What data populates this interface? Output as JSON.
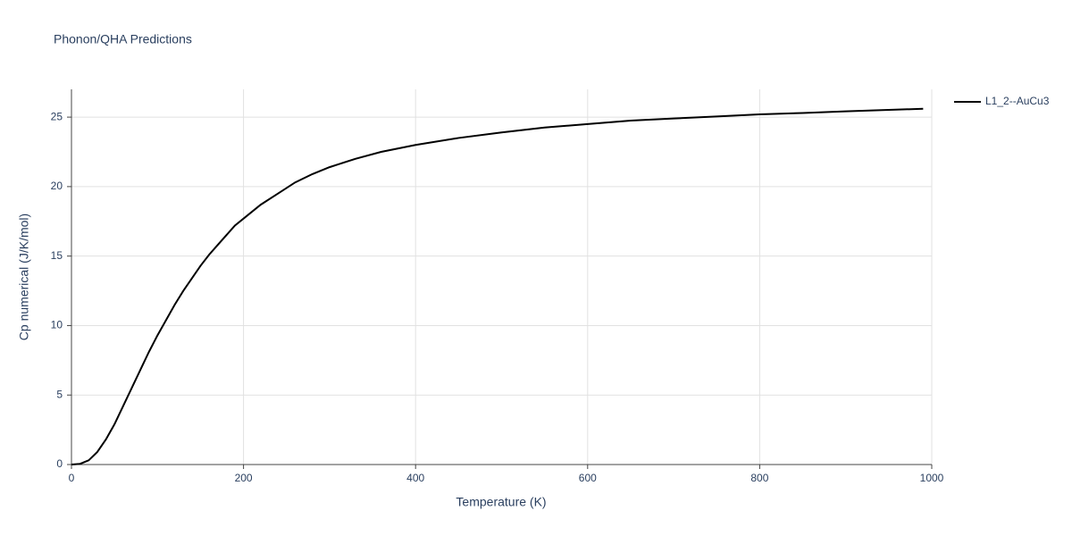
{
  "chart_data": {
    "type": "line",
    "title": "Phonon/QHA Predictions",
    "x_label": "Temperature (K)",
    "y_label": "Cp numerical (J/K/mol)",
    "x": [
      0,
      10,
      20,
      30,
      40,
      50,
      60,
      70,
      80,
      90,
      100,
      110,
      120,
      130,
      140,
      150,
      160,
      170,
      180,
      190,
      200,
      220,
      240,
      260,
      280,
      300,
      330,
      360,
      400,
      450,
      500,
      550,
      600,
      650,
      700,
      750,
      800,
      850,
      900,
      950,
      990
    ],
    "series": [
      {
        "name": "L1_2--AuCu3",
        "color": "#000000",
        "values": [
          0,
          0.05,
          0.3,
          0.9,
          1.8,
          2.9,
          4.2,
          5.5,
          6.8,
          8.1,
          9.3,
          10.4,
          11.5,
          12.5,
          13.4,
          14.3,
          15.1,
          15.8,
          16.5,
          17.2,
          17.7,
          18.7,
          19.5,
          20.3,
          20.9,
          21.4,
          22.0,
          22.5,
          23.0,
          23.5,
          23.9,
          24.25,
          24.5,
          24.75,
          24.9,
          25.05,
          25.2,
          25.3,
          25.42,
          25.52,
          25.6
        ]
      }
    ],
    "xlim": [
      0,
      1000
    ],
    "xticks": [
      0,
      200,
      400,
      600,
      800,
      1000
    ],
    "ylim": [
      0,
      27
    ],
    "yticks": [
      0,
      5,
      10,
      15,
      20,
      25
    ],
    "grid": true,
    "legend": "right"
  }
}
